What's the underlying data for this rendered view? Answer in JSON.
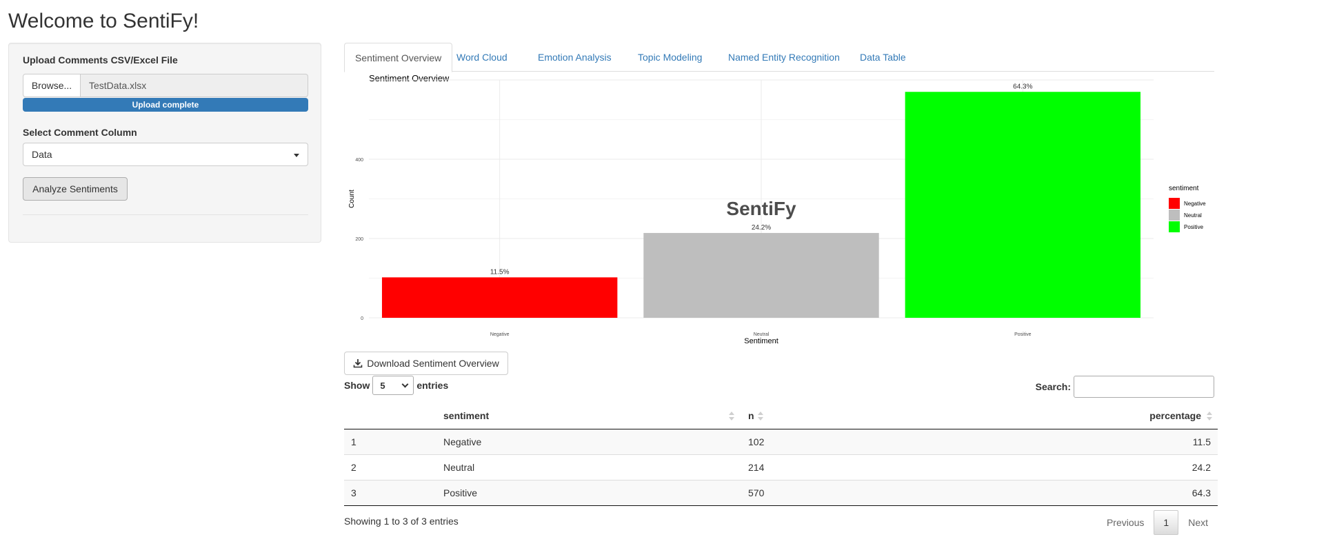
{
  "app": {
    "title": "Welcome to SentiFy!"
  },
  "sidebar": {
    "upload_label": "Upload Comments CSV/Excel File",
    "browse_label": "Browse...",
    "file_name": "TestData.xlsx",
    "upload_status": "Upload complete",
    "upload_progress": 1.0,
    "column_label": "Select Comment Column",
    "column_value": "Data",
    "analyze_label": "Analyze Sentiments"
  },
  "tabs": [
    {
      "label": "Sentiment Overview",
      "active": true
    },
    {
      "label": "Word Cloud",
      "active": false
    },
    {
      "label": "Emotion Analysis",
      "active": false
    },
    {
      "label": "Topic Modeling",
      "active": false
    },
    {
      "label": "Named Entity Recognition",
      "active": false
    },
    {
      "label": "Data Table",
      "active": false
    }
  ],
  "chart_data": {
    "type": "bar",
    "title": "Sentiment Overview",
    "watermark": "SentiFy",
    "xlabel": "Sentiment",
    "ylabel": "Count",
    "categories": [
      "Negative",
      "Neutral",
      "Positive"
    ],
    "values": [
      102,
      214,
      570
    ],
    "labels": [
      "11.5%",
      "24.2%",
      "64.3%"
    ],
    "colors": [
      "#ff0000",
      "#bebebe",
      "#00ff00"
    ],
    "yticks": [
      0,
      200,
      400
    ],
    "ylim": [
      0,
      600
    ],
    "grid": true,
    "legend": {
      "title": "sentiment",
      "entries": [
        "Negative",
        "Neutral",
        "Positive"
      ],
      "position": "right"
    }
  },
  "download_label": "Download Sentiment Overview",
  "table": {
    "show_label": "Show",
    "entries_label": "entries",
    "page_length": "5",
    "search_label": "Search:",
    "search_value": "",
    "columns": [
      "",
      "sentiment",
      "n",
      "percentage"
    ],
    "rows": [
      [
        "1",
        "Negative",
        "102",
        "11.5"
      ],
      [
        "2",
        "Neutral",
        "214",
        "24.2"
      ],
      [
        "3",
        "Positive",
        "570",
        "64.3"
      ]
    ],
    "info": "Showing 1 to 3 of 3 entries",
    "prev_label": "Previous",
    "page": "1",
    "next_label": "Next"
  }
}
